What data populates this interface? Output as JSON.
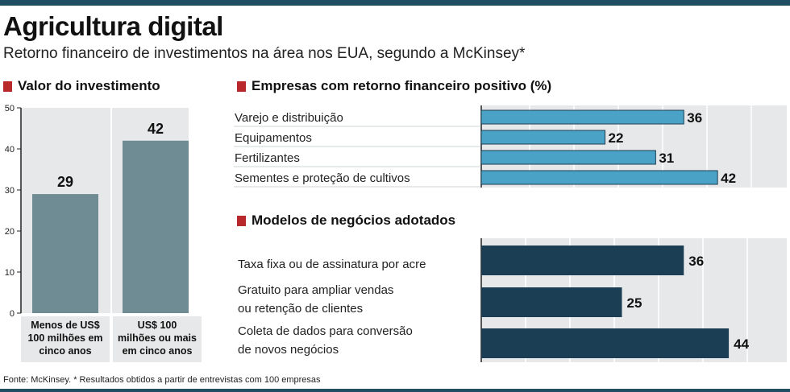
{
  "title": "Agricultura digital",
  "subtitle": "Retorno financeiro de investimentos na área nos EUA, segundo a McKinsey*",
  "footer": "Fonte: McKinsey. * Resultados obtidos a partir de entrevistas com 100 empresas",
  "colors": {
    "frame": "#1f4e63",
    "accent_red": "#b9282a",
    "panel_bg": "#e6e8e9",
    "bar_gray": "#6f8b94",
    "bar_blue": "#4aa3c7",
    "bar_navy": "#1b3e54"
  },
  "chart_data": [
    {
      "type": "bar",
      "title": "Valor do investimento",
      "categories": [
        [
          "Menos de US$",
          "100 milhões em",
          "cinco anos"
        ],
        [
          "US$ 100",
          "milhões ou mais",
          "em cinco anos"
        ]
      ],
      "values": [
        29,
        42
      ],
      "ylim": [
        0,
        50
      ],
      "yticks": [
        0,
        10,
        20,
        30,
        40,
        50
      ],
      "grid": false
    },
    {
      "type": "bar",
      "orientation": "horizontal",
      "title": "Empresas com retorno financeiro positivo (%)",
      "categories": [
        "Varejo e distribuição",
        "Equipamentos",
        "Fertilizantes",
        "Sementes e proteção de cultivos"
      ],
      "values": [
        36,
        22,
        31,
        42
      ],
      "xlim": [
        0,
        48
      ],
      "grid": true
    },
    {
      "type": "bar",
      "orientation": "horizontal",
      "title": "Modelos de negócios adotados",
      "categories": [
        [
          "Taxa fixa ou de assinatura por acre"
        ],
        [
          "Gratuito para ampliar vendas",
          "ou retenção de clientes"
        ],
        [
          "Coleta de dados para conversão",
          "de novos negócios"
        ]
      ],
      "values": [
        36,
        25,
        44
      ],
      "xlim": [
        0,
        50
      ],
      "grid": true
    }
  ]
}
